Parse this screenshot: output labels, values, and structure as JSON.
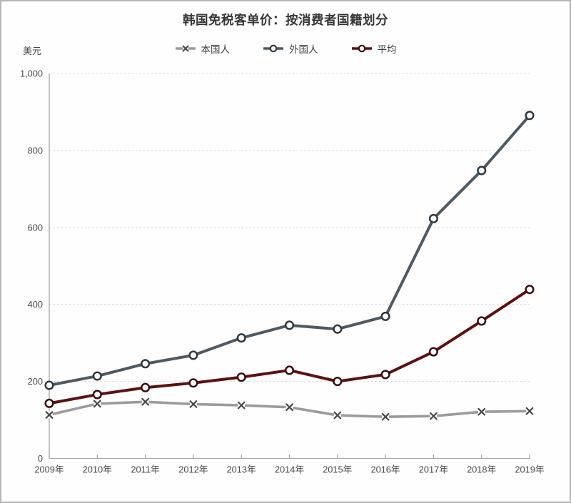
{
  "page": {
    "title": "韩国免税客单价：按消费者国籍划分",
    "y_unit_label": "美元"
  },
  "chart_data": {
    "type": "line",
    "title": "韩国免税客单价：按消费者国籍划分",
    "xlabel": "",
    "ylabel": "美元",
    "categories": [
      "2009年",
      "2010年",
      "2011年",
      "2012年",
      "2013年",
      "2014年",
      "2015年",
      "2016年",
      "2017年",
      "2018年",
      "2019年"
    ],
    "series": [
      {
        "key": "domestic",
        "name": "本国人",
        "marker": "x",
        "color": "#9b9b9b",
        "marker_color": "#474747",
        "line_width": 3.6,
        "values": [
          113,
          142,
          147,
          141,
          138,
          133,
          112,
          108,
          110,
          121,
          123
        ]
      },
      {
        "key": "foreigners",
        "name": "外国人",
        "marker": "circle",
        "color": "#4d5a64",
        "marker_color": "#2e3840",
        "line_width": 4,
        "values": [
          190,
          214,
          246,
          268,
          313,
          346,
          336,
          369,
          623,
          748,
          891
        ]
      },
      {
        "key": "average",
        "name": "平均",
        "marker": "circle",
        "color": "#5c1111",
        "marker_color": "#3c0b0b",
        "line_width": 4,
        "values": [
          143,
          166,
          184,
          196,
          211,
          229,
          200,
          218,
          277,
          357,
          439
        ]
      }
    ],
    "ylim": [
      0,
      1000
    ],
    "yticks": [
      0,
      200,
      400,
      600,
      800,
      1000
    ],
    "ytick_labels": [
      "0",
      "200",
      "400",
      "600",
      "800",
      "1,000"
    ],
    "grid": true,
    "gridline_color": "#d8d8d8",
    "axis_color": "#a6a6a6",
    "legend_position": "top"
  }
}
